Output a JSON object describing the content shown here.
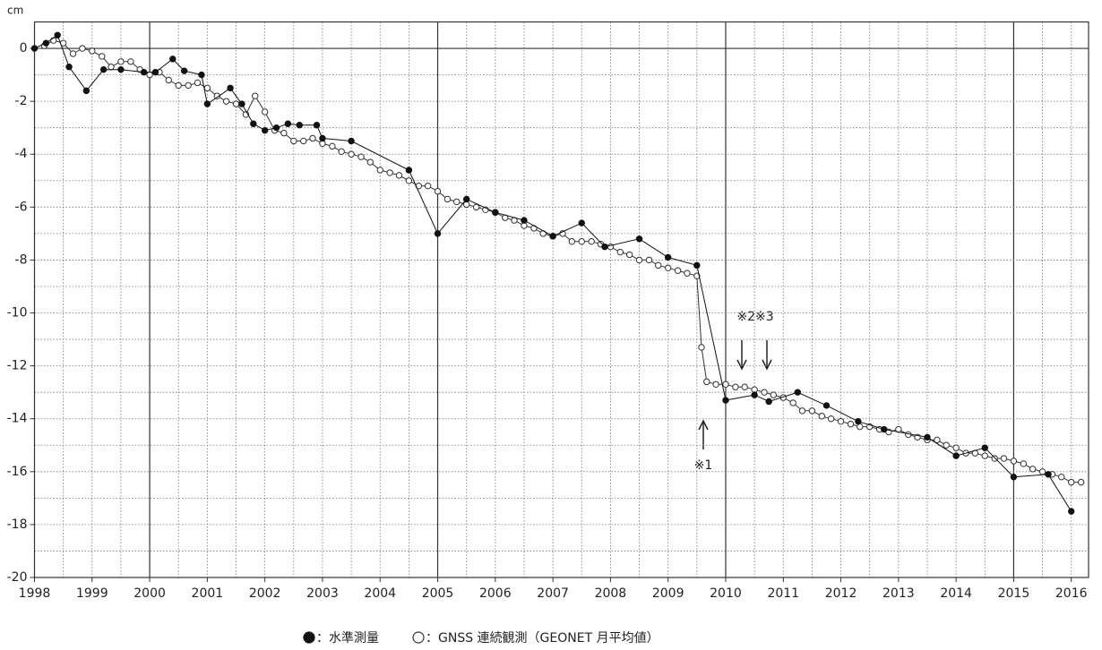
{
  "chart_data": {
    "type": "line",
    "y_label": "cm",
    "xlim": [
      1998,
      2016.3
    ],
    "ylim": [
      -20,
      1
    ],
    "xticks": [
      1998,
      1999,
      2000,
      2001,
      2002,
      2003,
      2004,
      2005,
      2006,
      2007,
      2008,
      2009,
      2010,
      2011,
      2012,
      2013,
      2014,
      2015,
      2016
    ],
    "yticks": [
      -20,
      -18,
      -16,
      -14,
      -12,
      -10,
      -8,
      -6,
      -4,
      -2,
      0
    ],
    "grid": true,
    "annotations": [
      "※1",
      "※2※3"
    ],
    "series": [
      {
        "name": "：水準測量",
        "color": "#111111",
        "marker": "filled",
        "x": [
          1998.0,
          1998.2,
          1998.4,
          1998.6,
          1998.9,
          1999.2,
          1999.5,
          1999.9,
          2000.1,
          2000.4,
          2000.6,
          2000.9,
          2001.0,
          2001.4,
          2001.6,
          2001.8,
          2002.0,
          2002.2,
          2002.4,
          2002.6,
          2002.9,
          2003.0,
          2003.5,
          2004.5,
          2005.0,
          2005.5,
          2006.0,
          2006.5,
          2007.0,
          2007.5,
          2007.9,
          2008.5,
          2009.0,
          2009.5,
          2010.0,
          2010.5,
          2010.75,
          2011.25,
          2011.75,
          2012.3,
          2012.75,
          2013.5,
          2014.0,
          2014.5,
          2015.0,
          2015.6,
          2016.0
        ],
        "values": [
          0,
          0.2,
          0.5,
          -0.7,
          -1.6,
          -0.8,
          -0.8,
          -0.9,
          -0.9,
          -0.4,
          -0.85,
          -1.0,
          -2.1,
          -1.5,
          -2.1,
          -2.85,
          -3.1,
          -3.0,
          -2.85,
          -2.9,
          -2.9,
          -3.4,
          -3.5,
          -4.6,
          -7.0,
          -5.7,
          -6.2,
          -6.5,
          -7.1,
          -6.6,
          -7.5,
          -7.2,
          -7.9,
          -8.2,
          -13.3,
          -13.1,
          -13.35,
          -13.0,
          -13.5,
          -14.1,
          -14.4,
          -14.7,
          -15.4,
          -15.1,
          -16.2,
          -16.1,
          -17.5
        ]
      },
      {
        "name": "：GNSS 連続観測（GEONET 月平均値）",
        "color": "#333333",
        "marker": "open",
        "x": [
          1998.17,
          1998.33,
          1998.5,
          1998.67,
          1998.83,
          1999.0,
          1999.17,
          1999.33,
          1999.5,
          1999.67,
          1999.83,
          2000.0,
          2000.17,
          2000.33,
          2000.5,
          2000.67,
          2000.83,
          2001.0,
          2001.17,
          2001.33,
          2001.5,
          2001.67,
          2001.83,
          2002.0,
          2002.17,
          2002.33,
          2002.5,
          2002.67,
          2002.83,
          2003.0,
          2003.17,
          2003.33,
          2003.5,
          2003.67,
          2003.83,
          2004.0,
          2004.17,
          2004.33,
          2004.5,
          2004.67,
          2004.83,
          2005.0,
          2005.17,
          2005.33,
          2005.5,
          2005.67,
          2005.83,
          2006.0,
          2006.17,
          2006.33,
          2006.5,
          2006.67,
          2006.83,
          2007.0,
          2007.17,
          2007.33,
          2007.5,
          2007.67,
          2007.83,
          2008.0,
          2008.17,
          2008.33,
          2008.5,
          2008.67,
          2008.83,
          2009.0,
          2009.17,
          2009.33,
          2009.5,
          2009.58,
          2009.67,
          2009.83,
          2010.0,
          2010.17,
          2010.33,
          2010.5,
          2010.67,
          2010.83,
          2011.0,
          2011.17,
          2011.33,
          2011.5,
          2011.67,
          2011.83,
          2012.0,
          2012.17,
          2012.33,
          2012.5,
          2012.67,
          2012.83,
          2013.0,
          2013.17,
          2013.33,
          2013.5,
          2013.67,
          2013.83,
          2014.0,
          2014.17,
          2014.33,
          2014.5,
          2014.67,
          2014.83,
          2015.0,
          2015.17,
          2015.33,
          2015.5,
          2015.67,
          2015.83,
          2016.0,
          2016.17
        ],
        "values": [
          0.1,
          0.3,
          0.2,
          -0.2,
          0,
          -0.1,
          -0.3,
          -0.7,
          -0.5,
          -0.5,
          -0.8,
          -1.0,
          -0.9,
          -1.2,
          -1.4,
          -1.4,
          -1.3,
          -1.5,
          -1.8,
          -2.0,
          -2.1,
          -2.5,
          -1.8,
          -2.4,
          -3.1,
          -3.2,
          -3.5,
          -3.5,
          -3.4,
          -3.6,
          -3.7,
          -3.9,
          -4.0,
          -4.1,
          -4.3,
          -4.6,
          -4.7,
          -4.8,
          -5.0,
          -5.2,
          -5.2,
          -5.4,
          -5.7,
          -5.8,
          -5.9,
          -6.0,
          -6.1,
          -6.2,
          -6.4,
          -6.5,
          -6.7,
          -6.8,
          -7.0,
          -7.1,
          -7.0,
          -7.3,
          -7.3,
          -7.3,
          -7.4,
          -7.5,
          -7.7,
          -7.8,
          -8.0,
          -8.0,
          -8.2,
          -8.3,
          -8.4,
          -8.5,
          -8.6,
          -11.3,
          -12.6,
          -12.7,
          -12.7,
          -12.8,
          -12.8,
          -12.9,
          -13.0,
          -13.1,
          -13.2,
          -13.4,
          -13.7,
          -13.7,
          -13.9,
          -14.0,
          -14.1,
          -14.2,
          -14.3,
          -14.3,
          -14.4,
          -14.5,
          -14.4,
          -14.6,
          -14.7,
          -14.8,
          -14.8,
          -15.0,
          -15.1,
          -15.3,
          -15.3,
          -15.4,
          -15.5,
          -15.5,
          -15.6,
          -15.7,
          -15.9,
          -16.0,
          -16.1,
          -16.2,
          -16.4,
          -16.4
        ]
      }
    ]
  }
}
